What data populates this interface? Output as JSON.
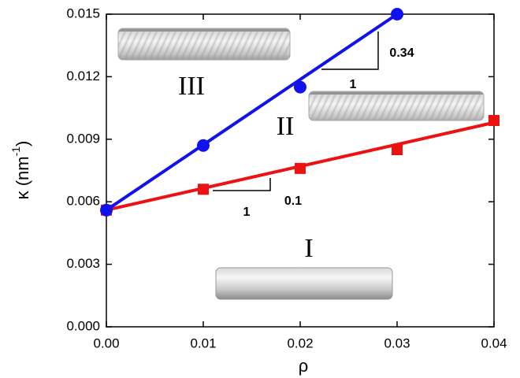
{
  "chart_data": {
    "type": "line",
    "x_label": "ρ",
    "y_label": {
      "main": "κ (nm",
      "sup": "-1",
      "end": ")"
    },
    "xlim": [
      0,
      0.04
    ],
    "xticks": [
      {
        "value": 0,
        "label": "0.00"
      },
      {
        "value": 0.01,
        "label": "0.01"
      },
      {
        "value": 0.02,
        "label": "0.02"
      },
      {
        "value": 0.03,
        "label": "0.03"
      },
      {
        "value": 0.04,
        "label": "0.04"
      }
    ],
    "ylim": [
      0,
      0.015
    ],
    "yticks": [
      {
        "value": 0,
        "label": "0.000"
      },
      {
        "value": 0.003,
        "label": "0.003"
      },
      {
        "value": 0.006,
        "label": "0.006"
      },
      {
        "value": 0.009,
        "label": "0.009"
      },
      {
        "value": 0.012,
        "label": "0.012"
      },
      {
        "value": 0.015,
        "label": "0.015"
      }
    ],
    "series": [
      {
        "color": "#ee1111",
        "marker": "square",
        "x": [
          0,
          0.01,
          0.02,
          0.03,
          0.04
        ],
        "values": [
          0.0056,
          0.0066,
          0.0076,
          0.0085,
          0.0099
        ],
        "fit": {
          "x": [
            0,
            0.04
          ],
          "values": [
            0.0056,
            0.0098
          ]
        }
      },
      {
        "color": "#1111ee",
        "marker": "circle",
        "x": [
          0,
          0.01,
          0.02,
          0.03
        ],
        "values": [
          0.0056,
          0.0087,
          0.0115,
          0.015
        ],
        "fit": {
          "x": [
            0,
            0.03
          ],
          "values": [
            0.0056,
            0.015
          ]
        }
      }
    ],
    "annotations": [
      "0.34",
      "1",
      "0.1",
      "1",
      "III",
      "II",
      "I"
    ]
  }
}
